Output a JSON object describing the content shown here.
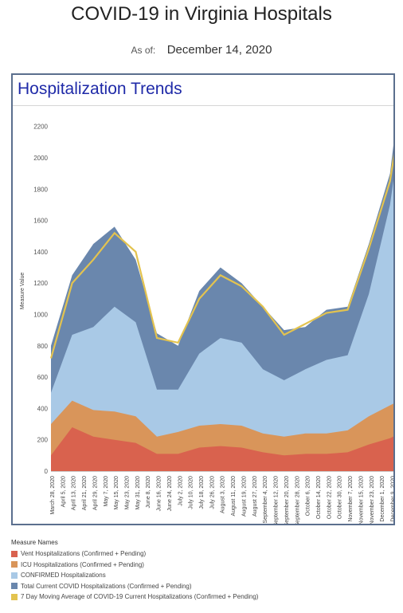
{
  "header": {
    "title": "COVID-19 in Virginia Hospitals",
    "asof_label": "As of:",
    "asof_date": "December 14, 2020"
  },
  "panel": {
    "title": "Hospitalization Trends"
  },
  "legend": {
    "title": "Measure Names",
    "items": [
      {
        "label": "Vent Hospitalizations (Confirmed + Pending)",
        "color": "#d9624e"
      },
      {
        "label": "ICU Hospitalizations (Confirmed + Pending)",
        "color": "#d9955a"
      },
      {
        "label": "CONFIRMED Hospitalizations",
        "color": "#a9c9e6"
      },
      {
        "label": "Total Current COVID Hospitalizations (Confirmed + Pending)",
        "color": "#6a87ad"
      },
      {
        "label": "7 Day Moving Average of COVID-19 Current Hospitalizations (Confirmed + Pending)",
        "color": "#e3c34f"
      }
    ]
  },
  "chart_data": {
    "type": "area",
    "ylabel": "Measure Value",
    "ylim": [
      0,
      2300
    ],
    "yticks": [
      0,
      200,
      400,
      600,
      800,
      1000,
      1200,
      1400,
      1600,
      1800,
      2000,
      2200
    ],
    "x_dates": [
      "2020-03-28",
      "2020-04-13",
      "2020-04-29",
      "2020-05-15",
      "2020-05-31",
      "2020-06-16",
      "2020-07-02",
      "2020-07-18",
      "2020-08-03",
      "2020-08-19",
      "2020-09-04",
      "2020-09-20",
      "2020-10-06",
      "2020-10-22",
      "2020-11-07",
      "2020-11-23",
      "2020-12-09",
      "2020-12-14"
    ],
    "x_ticks": [
      "March 28, 2020",
      "April 5, 2020",
      "April 13, 2020",
      "April 21, 2020",
      "April 29, 2020",
      "May 7, 2020",
      "May 15, 2020",
      "May 23, 2020",
      "May 31, 2020",
      "June 8, 2020",
      "June 16, 2020",
      "June 24, 2020",
      "July 2, 2020",
      "July 10, 2020",
      "July 18, 2020",
      "July 26, 2020",
      "August 3, 2020",
      "August 11, 2020",
      "August 19, 2020",
      "August 27, 2020",
      "September 4, 2020",
      "September 12, 2020",
      "September 20, 2020",
      "September 28, 2020",
      "October 6, 2020",
      "October 14, 2020",
      "October 22, 2020",
      "October 30, 2020",
      "November 7, 2020",
      "November 15, 2020",
      "November 23, 2020",
      "December 1, 2020",
      "December 9, 2020"
    ],
    "series": [
      {
        "name": "Total Current COVID Hospitalizations (Confirmed + Pending)",
        "color": "#6a87ad",
        "values": [
          800,
          1250,
          1450,
          1560,
          1350,
          880,
          800,
          1150,
          1300,
          1200,
          1050,
          900,
          920,
          1030,
          1050,
          1450,
          1900,
          2250
        ]
      },
      {
        "name": "CONFIRMED Hospitalizations",
        "color": "#a9c9e6",
        "values": [
          500,
          870,
          920,
          1050,
          950,
          520,
          520,
          750,
          850,
          820,
          650,
          580,
          650,
          710,
          740,
          1130,
          1700,
          2000
        ]
      },
      {
        "name": "ICU Hospitalizations (Confirmed + Pending)",
        "color": "#d9955a",
        "values": [
          300,
          450,
          390,
          380,
          350,
          220,
          250,
          290,
          300,
          290,
          240,
          220,
          240,
          240,
          260,
          350,
          420,
          440
        ]
      },
      {
        "name": "Vent Hospitalizations (Confirmed + Pending)",
        "color": "#d9624e",
        "values": [
          100,
          280,
          220,
          200,
          180,
          110,
          110,
          150,
          160,
          150,
          120,
          100,
          110,
          110,
          120,
          170,
          210,
          230
        ]
      },
      {
        "name": "7 Day Moving Average of COVID-19 Current Hospitalizations (Confirmed + Pending)",
        "color": "#e3c34f",
        "values": [
          720,
          1200,
          1350,
          1520,
          1400,
          850,
          820,
          1100,
          1250,
          1180,
          1050,
          870,
          940,
          1010,
          1030,
          1420,
          1850,
          2120
        ]
      }
    ]
  }
}
